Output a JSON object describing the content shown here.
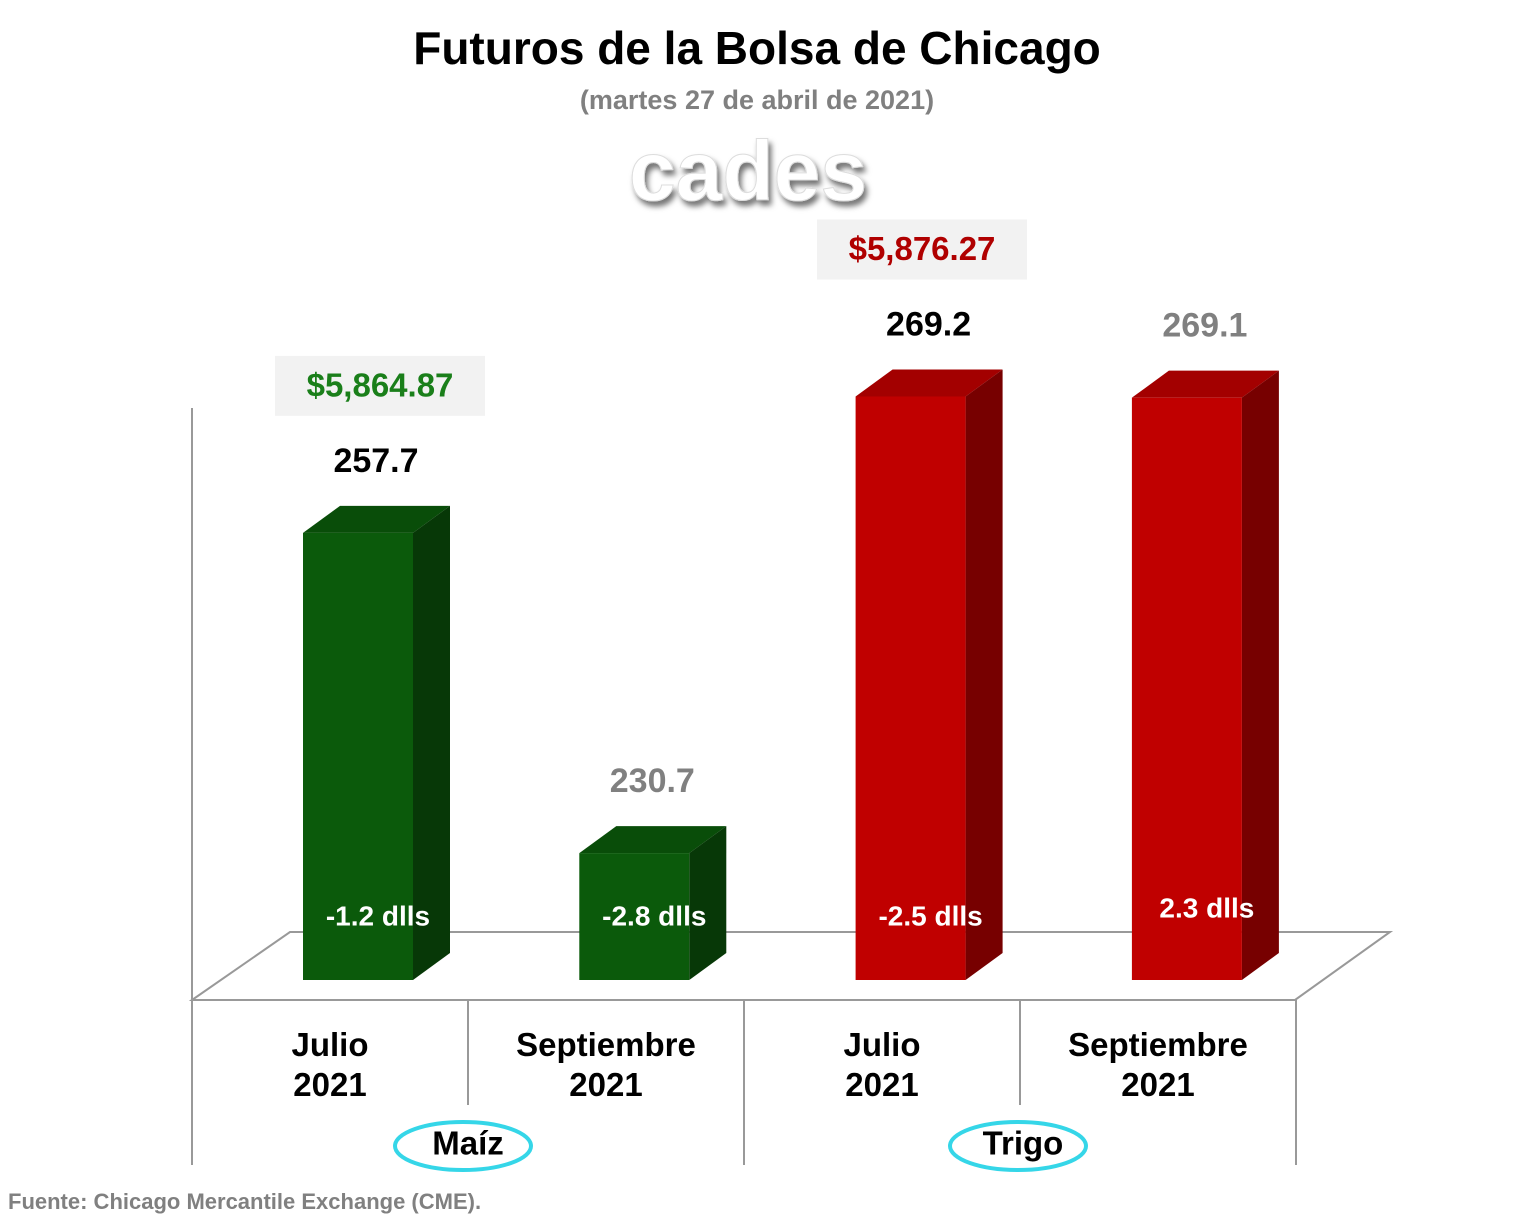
{
  "chart_data": {
    "type": "bar3d",
    "title": "Futuros de la Bolsa de Chicago",
    "subtitle": "(martes 27 de abril de 2021)",
    "logo": "cades",
    "categories": [
      "Julio 2021",
      "Septiembre 2021",
      "Julio 2021",
      "Septiembre 2021"
    ],
    "values": [
      257.7,
      230.7,
      269.2,
      269.1
    ],
    "colors": [
      "#0b5a0b",
      "#0b5a0b",
      "#c00000",
      "#c00000"
    ],
    "value_label_colors": [
      "#000000",
      "#808080",
      "#000000",
      "#808080"
    ],
    "changes": [
      "-1.2 dlls",
      "-2.8 dlls",
      "-2.5 dlls",
      "2.3 dlls"
    ],
    "groups": [
      {
        "name": "Maíz",
        "price": "$5,864.87",
        "price_color": "#1a7f1a"
      },
      {
        "name": "Trigo",
        "price": "$5,876.27",
        "price_color": "#b00000"
      }
    ],
    "ylim": [
      220,
      270
    ],
    "source": "Fuente: Chicago Mercantile Exchange (CME)."
  }
}
